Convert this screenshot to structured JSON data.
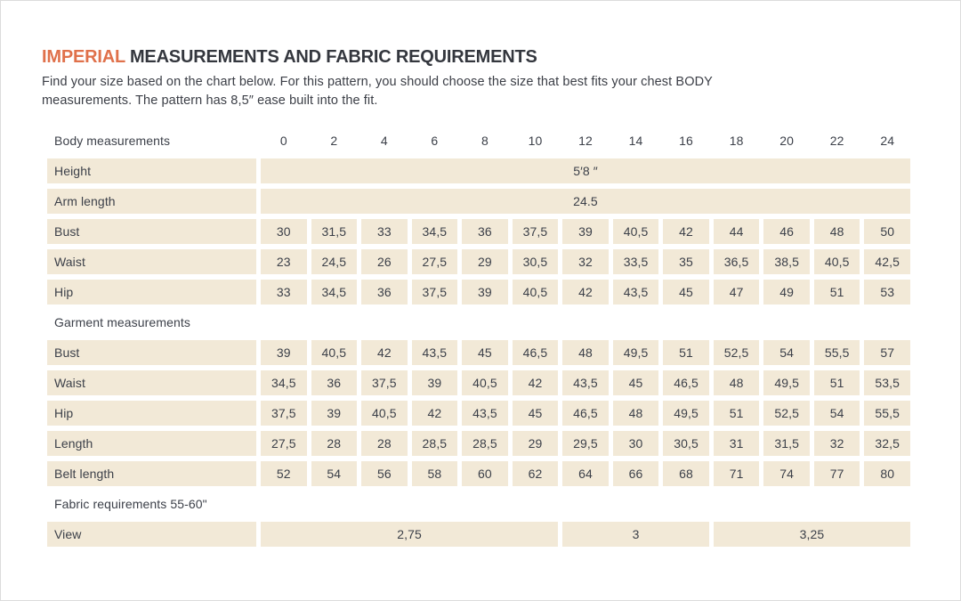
{
  "accent_color": "#e0714b",
  "cell_background_color": "#f2e9d7",
  "text_color": "#3c4049",
  "header": {
    "title_accent": "IMPERIAL",
    "title_rest": "MEASUREMENTS AND FABRIC REQUIREMENTS",
    "subtitle_lines": [
      "Find your size based on the chart below. For this pattern, you should choose the size that best fits your chest BODY",
      "measurements.  The pattern has 8,5″ ease built into the fit."
    ]
  },
  "table": {
    "header_row": {
      "label": "Body measurements",
      "sizes": [
        "0",
        "2",
        "4",
        "6",
        "8",
        "10",
        "12",
        "14",
        "16",
        "18",
        "20",
        "22",
        "24"
      ]
    },
    "rows": [
      {
        "type": "span",
        "label": "Height",
        "spans": [
          {
            "value": "5′8 ″",
            "cols": 13
          }
        ]
      },
      {
        "type": "span",
        "label": "Arm length",
        "spans": [
          {
            "value": "24.5",
            "cols": 13
          }
        ]
      },
      {
        "type": "data",
        "label": "Bust",
        "values": [
          "30",
          "31,5",
          "33",
          "34,5",
          "36",
          "37,5",
          "39",
          "40,5",
          "42",
          "44",
          "46",
          "48",
          "50"
        ]
      },
      {
        "type": "data",
        "label": "Waist",
        "values": [
          "23",
          "24,5",
          "26",
          "27,5",
          "29",
          "30,5",
          "32",
          "33,5",
          "35",
          "36,5",
          "38,5",
          "40,5",
          "42,5"
        ]
      },
      {
        "type": "data",
        "label": "Hip",
        "values": [
          "33",
          "34,5",
          "36",
          "37,5",
          "39",
          "40,5",
          "42",
          "43,5",
          "45",
          "47",
          "49",
          "51",
          "53"
        ]
      },
      {
        "type": "section",
        "label": "Garment measurements"
      },
      {
        "type": "data",
        "label": "Bust",
        "values": [
          "39",
          "40,5",
          "42",
          "43,5",
          "45",
          "46,5",
          "48",
          "49,5",
          "51",
          "52,5",
          "54",
          "55,5",
          "57"
        ]
      },
      {
        "type": "data",
        "label": "Waist",
        "values": [
          "34,5",
          "36",
          "37,5",
          "39",
          "40,5",
          "42",
          "43,5",
          "45",
          "46,5",
          "48",
          "49,5",
          "51",
          "53,5"
        ]
      },
      {
        "type": "data",
        "label": "Hip",
        "values": [
          "37,5",
          "39",
          "40,5",
          "42",
          "43,5",
          "45",
          "46,5",
          "48",
          "49,5",
          "51",
          "52,5",
          "54",
          "55,5"
        ]
      },
      {
        "type": "data",
        "label": "Length",
        "values": [
          "27,5",
          "28",
          "28",
          "28,5",
          "28,5",
          "29",
          "29,5",
          "30",
          "30,5",
          "31",
          "31,5",
          "32",
          "32,5"
        ]
      },
      {
        "type": "data",
        "label": "Belt length",
        "values": [
          "52",
          "54",
          "56",
          "58",
          "60",
          "62",
          "64",
          "66",
          "68",
          "71",
          "74",
          "77",
          "80"
        ]
      },
      {
        "type": "section",
        "label": "Fabric requirements 55-60\""
      },
      {
        "type": "span",
        "label": "View",
        "spans": [
          {
            "value": "2,75",
            "cols": 6
          },
          {
            "value": "3",
            "cols": 3
          },
          {
            "value": "3,25",
            "cols": 4
          }
        ]
      }
    ]
  }
}
